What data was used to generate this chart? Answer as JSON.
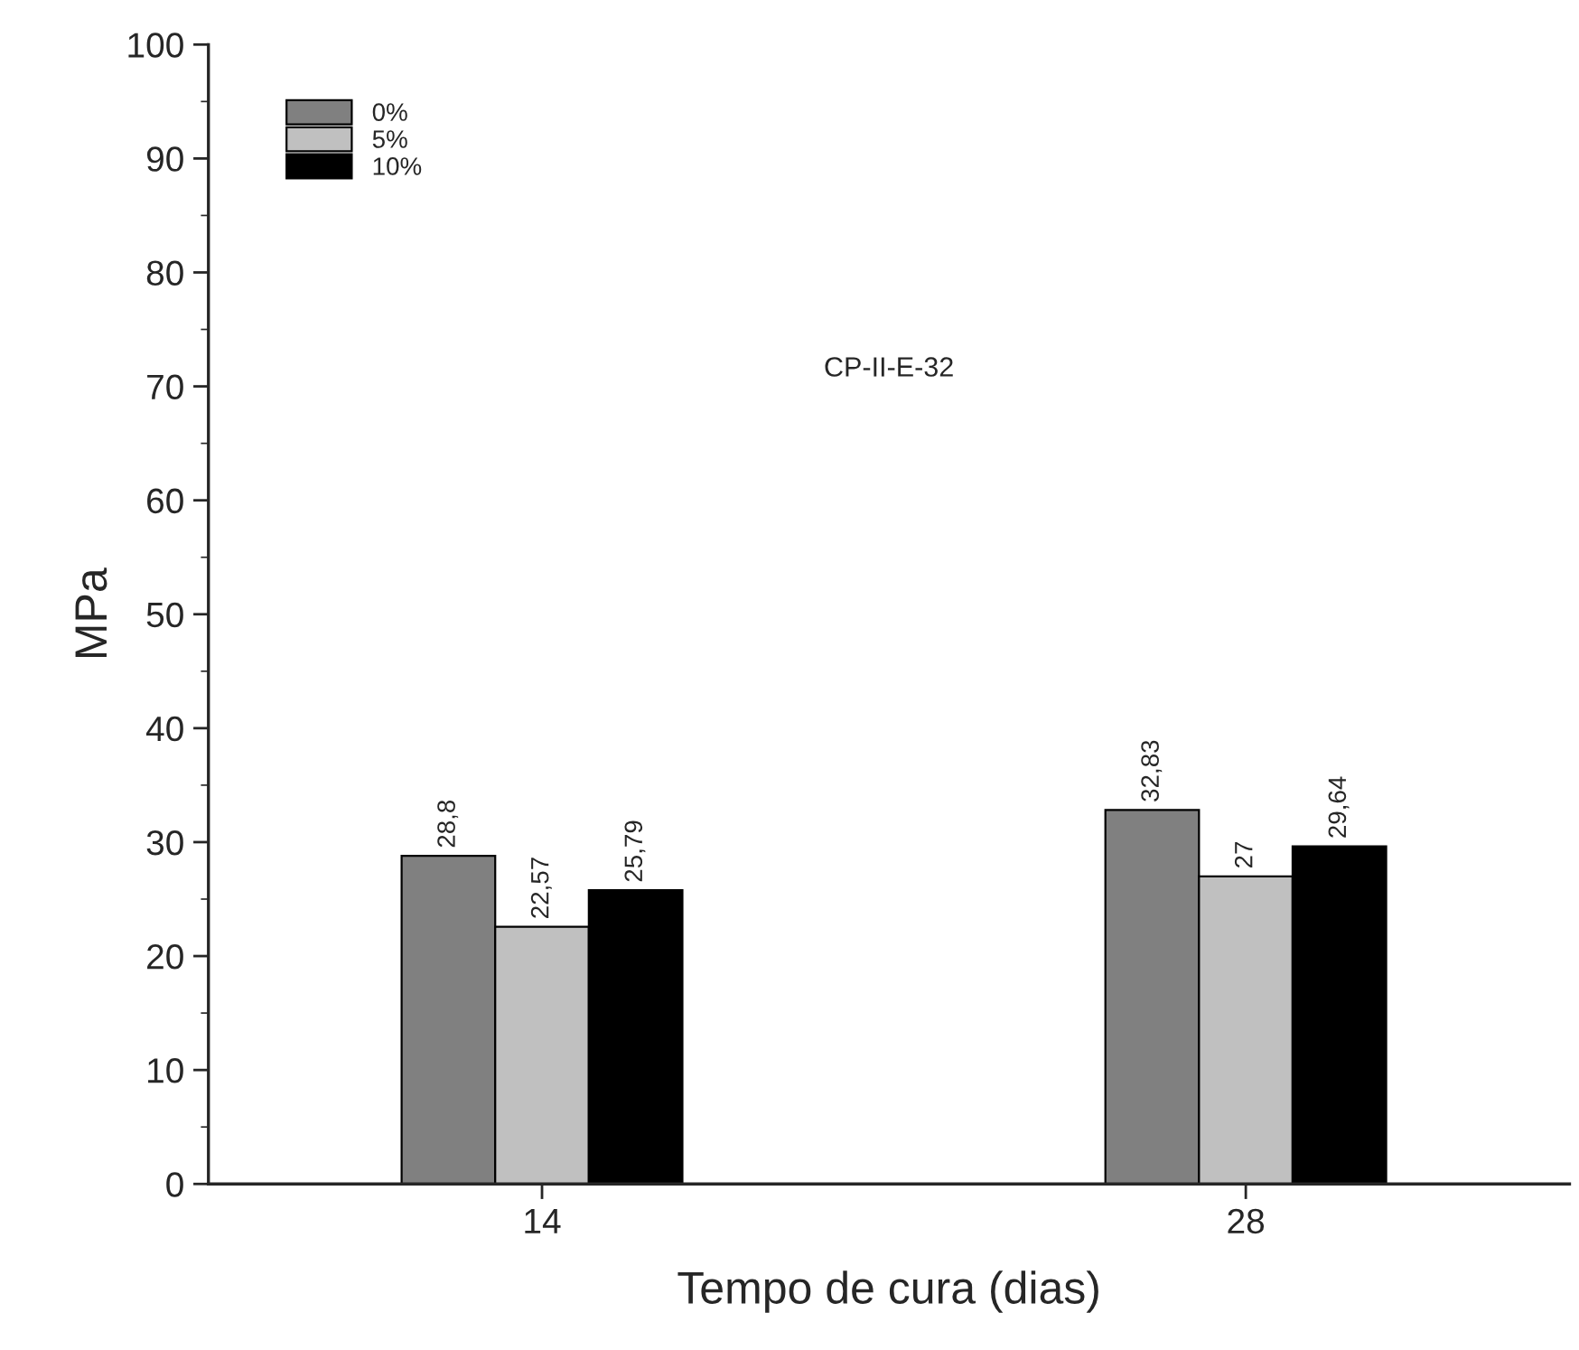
{
  "chart_data": {
    "type": "bar",
    "xlabel": "Tempo de cura (dias)",
    "ylabel": "MPa",
    "categories": [
      "14",
      "28"
    ],
    "series": [
      {
        "name": "0%",
        "color": "#808080",
        "values": [
          28.8,
          32.83
        ],
        "value_labels": [
          "28,8",
          "32,83"
        ]
      },
      {
        "name": "5%",
        "color": "#c0c0c0",
        "values": [
          22.57,
          27
        ],
        "value_labels": [
          "22,57",
          "27"
        ]
      },
      {
        "name": "10%",
        "color": "#000000",
        "values": [
          25.79,
          29.64
        ],
        "value_labels": [
          "25,79",
          "29,64"
        ]
      }
    ],
    "ylim": [
      0,
      100
    ],
    "yticks": [
      0,
      10,
      20,
      30,
      40,
      50,
      60,
      70,
      80,
      90,
      100
    ],
    "annotations": [
      "CP-II-E-32"
    ],
    "legend": "top left",
    "grid": false
  }
}
